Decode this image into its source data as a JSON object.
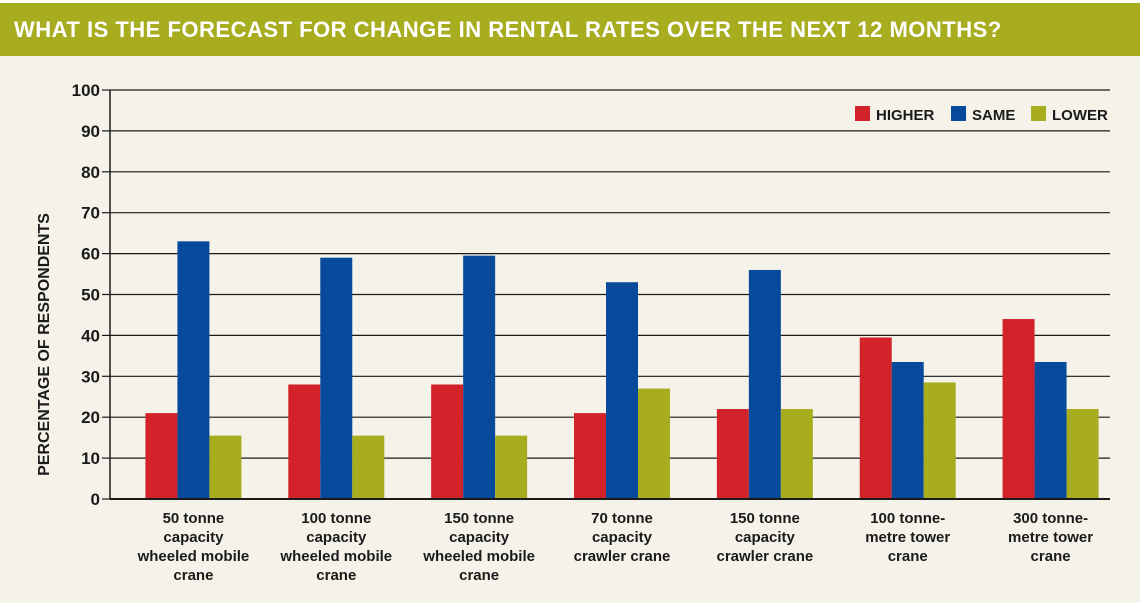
{
  "chart_data": {
    "type": "bar",
    "title": "WHAT IS THE FORECAST FOR CHANGE IN RENTAL RATES OVER THE NEXT 12 MONTHS?",
    "ylabel": "PERCENTAGE OF RESPONDENTS",
    "xlabel": "",
    "ylim": [
      0,
      100
    ],
    "yticks": [
      0,
      10,
      20,
      30,
      40,
      50,
      60,
      70,
      80,
      90,
      100
    ],
    "grid": true,
    "legend_position": "top-right",
    "categories": [
      [
        "50 tonne",
        "capacity",
        "wheeled mobile",
        "crane"
      ],
      [
        "100 tonne",
        "capacity",
        "wheeled mobile",
        "crane"
      ],
      [
        "150 tonne",
        "capacity",
        "wheeled mobile",
        "crane"
      ],
      [
        "70 tonne",
        "capacity",
        "crawler crane"
      ],
      [
        "150 tonne",
        "capacity",
        "crawler crane"
      ],
      [
        "100 tonne-",
        "metre tower",
        "crane"
      ],
      [
        "300 tonne-",
        "metre tower",
        "crane"
      ]
    ],
    "series": [
      {
        "name": "HIGHER",
        "color": "#d2232a",
        "values": [
          21,
          28,
          28,
          21,
          22,
          39.5,
          44
        ]
      },
      {
        "name": "SAME",
        "color": "#074a9c",
        "values": [
          63,
          59,
          59.5,
          53,
          56,
          33.5,
          33.5
        ]
      },
      {
        "name": "LOWER",
        "color": "#a8ac1f",
        "values": [
          15.5,
          15.5,
          15.5,
          27,
          22,
          28.5,
          22
        ]
      }
    ]
  }
}
